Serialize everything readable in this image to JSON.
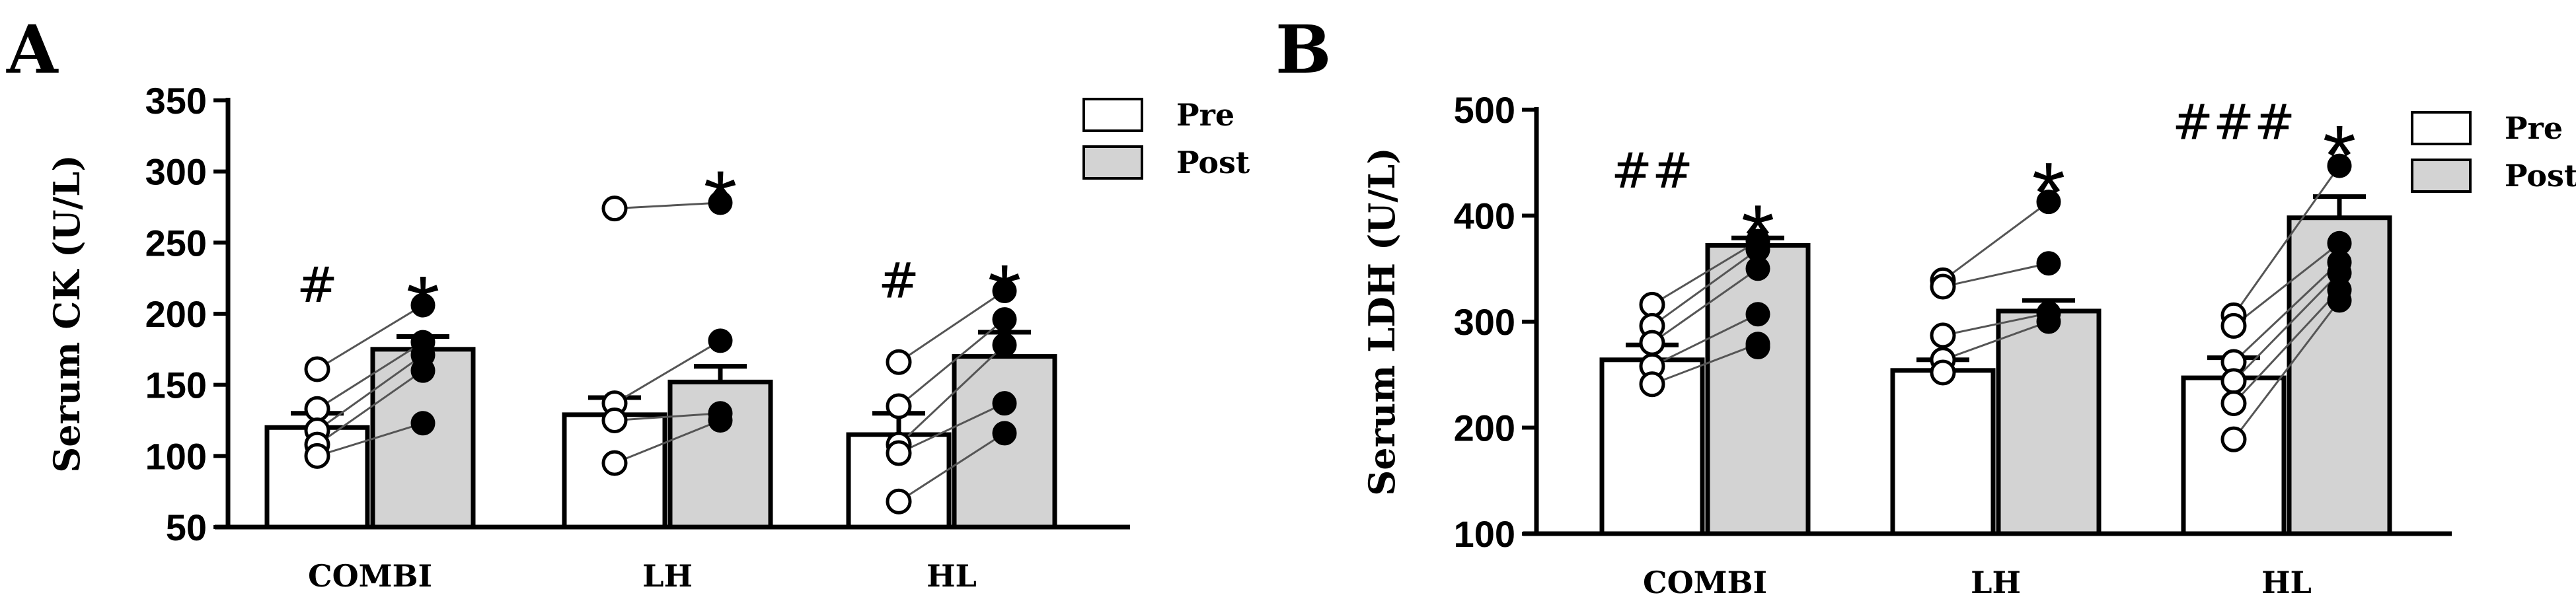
{
  "chart_data": [
    {
      "type": "bar",
      "panel": "A",
      "ylabel": "Serum CK (U/L)",
      "ylim": [
        50,
        350
      ],
      "yticks": [
        50,
        100,
        150,
        200,
        250,
        300,
        350
      ],
      "categories": [
        "COMBI",
        "LH",
        "HL"
      ],
      "legend": {
        "placement": "top-right",
        "entries": [
          "Pre",
          "Post"
        ]
      },
      "series": [
        {
          "name": "Pre",
          "color": "#ffffff",
          "values": [
            120,
            129,
            115
          ],
          "sem": [
            10,
            12,
            15
          ],
          "points": [
            [
              161,
              133,
              118,
              108,
              100
            ],
            [
              274,
              137,
              125,
              95
            ],
            [
              166,
              135,
              108,
              102,
              68
            ]
          ]
        },
        {
          "name": "Post",
          "color": "#d3d3d3",
          "values": [
            175,
            152,
            170
          ],
          "sem": [
            9,
            11,
            17
          ],
          "points": [
            [
              206,
              180,
              171,
              160,
              123
            ],
            [
              278,
              181,
              130,
              125
            ],
            [
              216,
              196,
              178,
              137,
              116
            ]
          ]
        }
      ],
      "annotations": [
        {
          "text": "#",
          "category": 0,
          "position": "pre",
          "y": 220
        },
        {
          "text": "*",
          "category": 0,
          "position": "post",
          "y": 210
        },
        {
          "text": "*",
          "category": 1,
          "position": "post",
          "y": 284
        },
        {
          "text": "#",
          "category": 2,
          "position": "pre",
          "y": 223
        },
        {
          "text": "*",
          "category": 2,
          "position": "post",
          "y": 218
        }
      ]
    },
    {
      "type": "bar",
      "panel": "B",
      "ylabel": "Serum LDH (U/L)",
      "ylim": [
        100,
        500
      ],
      "yticks": [
        100,
        200,
        300,
        400,
        500
      ],
      "categories": [
        "COMBI",
        "LH",
        "HL"
      ],
      "legend": {
        "placement": "top-right",
        "entries": [
          "Pre",
          "Post"
        ]
      },
      "series": [
        {
          "name": "Pre",
          "color": "#ffffff",
          "values": [
            264,
            254,
            247
          ],
          "sem": [
            14,
            10,
            19
          ],
          "points": [
            [
              316,
              296,
              280,
              258,
              241
            ],
            [
              339,
              333,
              287,
              264,
              252
            ],
            [
              306,
              296,
              262,
              244,
              223,
              189
            ]
          ]
        },
        {
          "name": "Post",
          "color": "#d3d3d3",
          "values": [
            372,
            310,
            398
          ],
          "sem": [
            7,
            10,
            20
          ],
          "points": [
            [
              376,
              368,
              350,
              307,
              279,
              276
            ],
            [
              413,
              355,
              308,
              300
            ],
            [
              447,
              374,
              356,
              346,
              330,
              320
            ]
          ]
        }
      ],
      "annotations": [
        {
          "text": "##",
          "category": 0,
          "position": "pre",
          "y": 442
        },
        {
          "text": "*",
          "category": 0,
          "position": "post",
          "y": 388
        },
        {
          "text": "*",
          "category": 1,
          "position": "post",
          "y": 428
        },
        {
          "text": "###",
          "category": 2,
          "position": "pre",
          "y": 488
        },
        {
          "text": "*",
          "category": 2,
          "position": "post",
          "y": 463
        }
      ]
    }
  ]
}
